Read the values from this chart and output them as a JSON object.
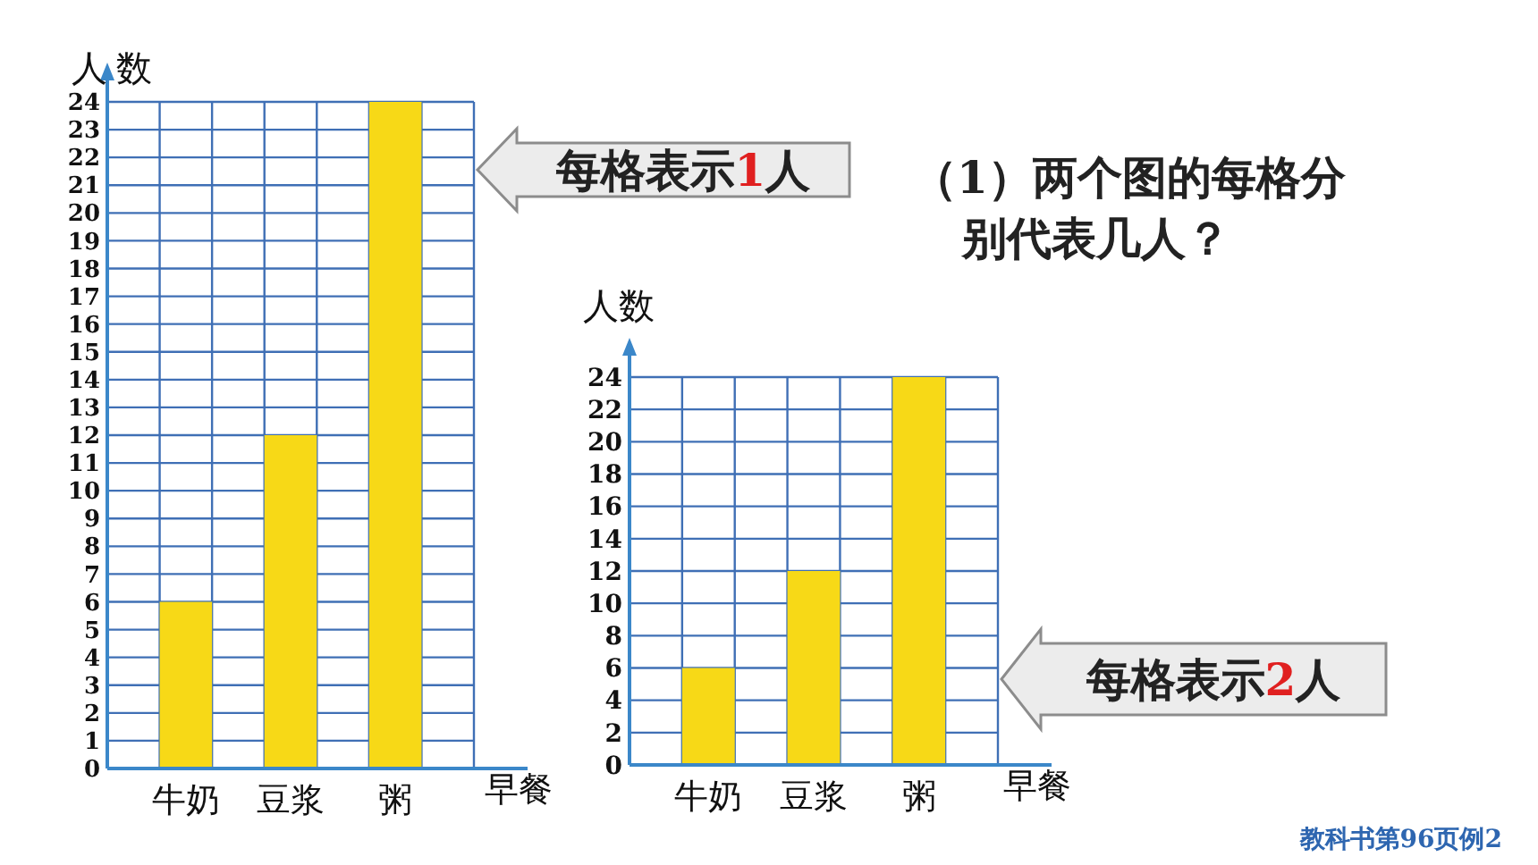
{
  "chart_data": [
    {
      "type": "bar",
      "ylabel": "人数",
      "xlabel": "早餐",
      "categories": [
        "牛奶",
        "豆浆",
        "粥"
      ],
      "values": [
        6,
        12,
        24
      ],
      "color": "#f7d917",
      "ylim": [
        0,
        24
      ],
      "yticks": [
        0,
        1,
        2,
        3,
        4,
        5,
        6,
        7,
        8,
        9,
        10,
        11,
        12,
        13,
        14,
        15,
        16,
        17,
        18,
        19,
        20,
        21,
        22,
        23,
        24
      ],
      "grid": true,
      "annotations": [
        "每格表示1人",
        "（1）两个图的每格分别代表几人？"
      ]
    },
    {
      "type": "bar",
      "ylabel": "人数",
      "xlabel": "早餐",
      "categories": [
        "牛奶",
        "豆浆",
        "粥"
      ],
      "values": [
        6,
        12,
        24
      ],
      "color": "#f7d917",
      "ylim": [
        0,
        24
      ],
      "yticks": [
        0,
        2,
        4,
        6,
        8,
        10,
        12,
        14,
        16,
        18,
        20,
        22,
        24
      ],
      "grid": true,
      "annotations": [
        "每格表示2人",
        "教科书第96页例2"
      ]
    }
  ]
}
